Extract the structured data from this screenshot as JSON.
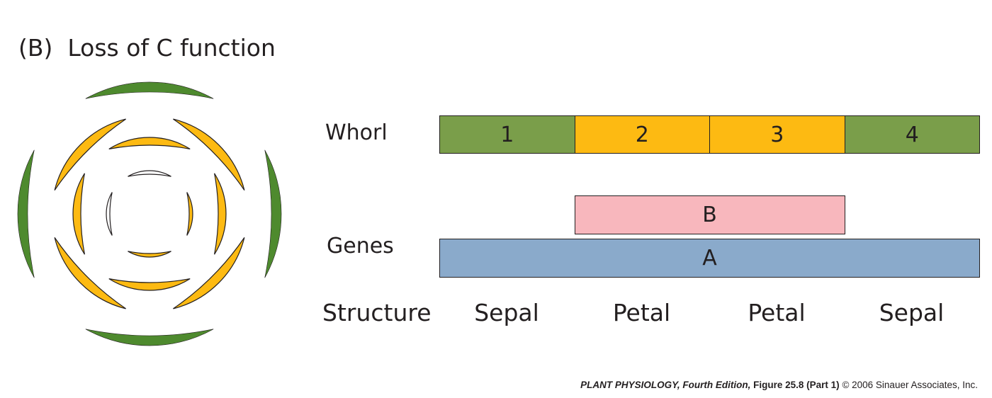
{
  "title": "(B)  Loss of C function",
  "labels": {
    "whorl": "Whorl",
    "genes": "Genes",
    "structure": "Structure"
  },
  "whorls": [
    {
      "label": "1",
      "color": "#7a9e4a"
    },
    {
      "label": "2",
      "color": "#fdba12"
    },
    {
      "label": "3",
      "color": "#fdba12"
    },
    {
      "label": "4",
      "color": "#7a9e4a"
    }
  ],
  "genes": {
    "B": {
      "label": "B",
      "color": "#f8b7bd",
      "whorls": [
        2,
        3
      ]
    },
    "A": {
      "label": "A",
      "color": "#8aaacb",
      "whorls": [
        1,
        2,
        3,
        4
      ]
    }
  },
  "structures": [
    "Sepal",
    "Petal",
    "Petal",
    "Sepal"
  ],
  "credit": {
    "book": "PLANT PHYSIOLOGY, Fourth Edition,",
    "figure": "Figure 25.8 (Part 1)",
    "copyright": "© 2006 Sinauer Associates, Inc."
  },
  "flower_colors": {
    "sepal": "#4e8a2e",
    "petal": "#fdba12",
    "outline": "#231f20"
  }
}
